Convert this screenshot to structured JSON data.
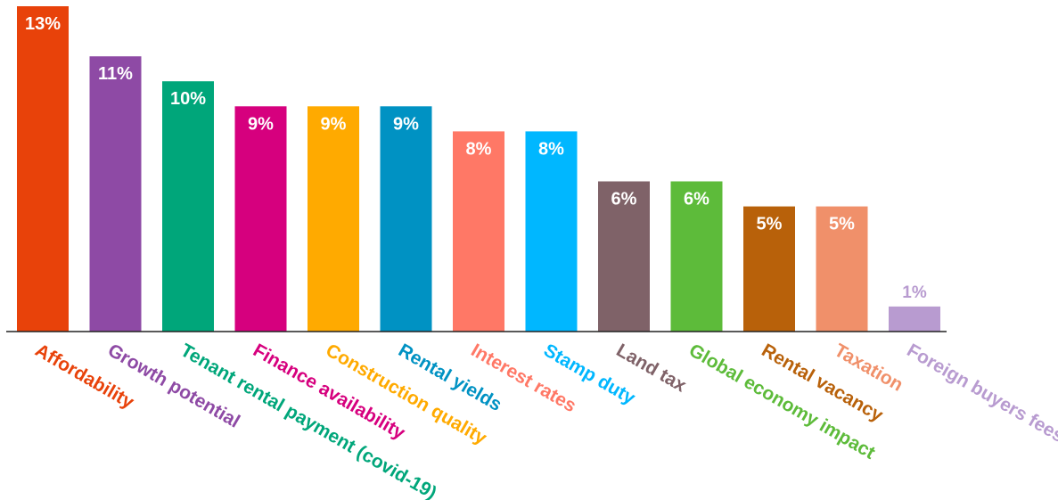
{
  "chart_data": {
    "type": "bar",
    "categories": [
      "Affordability",
      "Growth potential",
      "Tenant rental payment (covid-19)",
      "Finance availability",
      "Construction quality",
      "Rental yields",
      "Interest rates",
      "Stamp duty",
      "Land tax",
      "Global economy impact",
      "Rental vacancy",
      "Taxation",
      "Foreign buyers fees"
    ],
    "values": [
      13,
      11,
      10,
      9,
      9,
      9,
      8,
      8,
      6,
      6,
      5,
      5,
      1
    ],
    "value_labels": [
      "13%",
      "11%",
      "10%",
      "9%",
      "9%",
      "9%",
      "8%",
      "8%",
      "6%",
      "6%",
      "5%",
      "5%",
      "1%"
    ],
    "colors": [
      "#E8420A",
      "#8E4AA5",
      "#00A67A",
      "#D6007E",
      "#FFAA00",
      "#0092C3",
      "#FF7866",
      "#00B7FF",
      "#7F6268",
      "#5DBB3A",
      "#B8610A",
      "#F0906A",
      "#B89BD0"
    ],
    "title": "",
    "xlabel": "",
    "ylabel": "",
    "ylim": [
      0,
      13
    ],
    "grid": false,
    "legend": "none",
    "value_label_placement": "inside-top",
    "category_label_rotation": "diagonal"
  }
}
